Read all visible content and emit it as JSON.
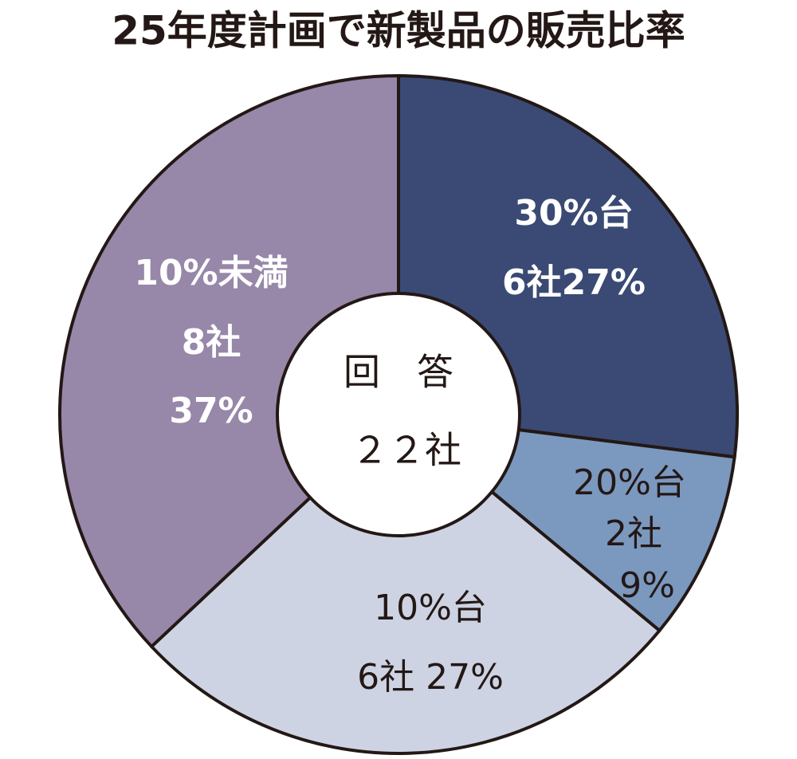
{
  "chart_data": {
    "type": "donut",
    "title": "25年度計画で新製品の販売比率",
    "center_labels": [
      "回　答",
      "２２社"
    ],
    "categories": [
      "30%台",
      "20%台",
      "10%台",
      "10%未満"
    ],
    "count_labels": [
      "6社",
      "2社",
      "6社",
      "8社"
    ],
    "values": [
      27,
      9,
      27,
      37
    ],
    "value_labels": [
      "27%",
      "9%",
      "27%",
      "37%"
    ],
    "colors": [
      "#3a4a74",
      "#7b98bf",
      "#cdd3e3",
      "#9787a9"
    ],
    "label_colors": [
      "#ffffff",
      "#231815",
      "#231815",
      "#ffffff"
    ]
  }
}
